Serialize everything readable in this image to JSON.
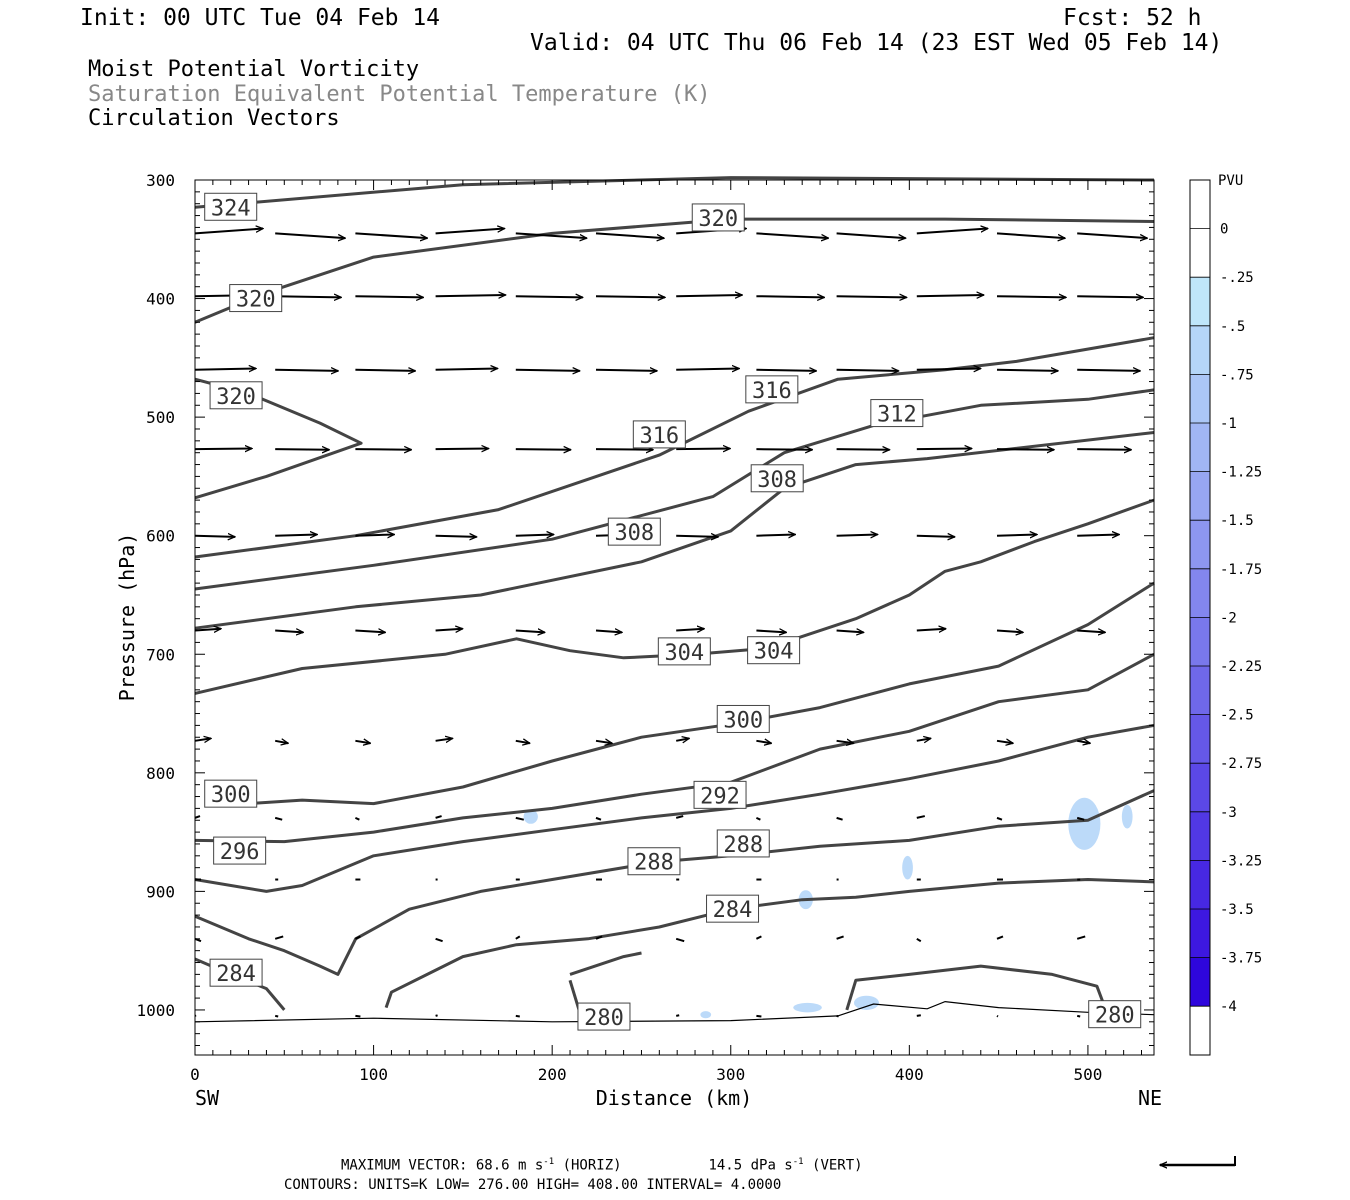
{
  "header": {
    "init": "Init: 00 UTC Tue 04 Feb 14",
    "fcst": "Fcst:   52 h",
    "valid": "Valid: 04 UTC Thu 06 Feb 14 (23 EST Wed 05 Feb 14)"
  },
  "layers": [
    {
      "label": "Moist Potential Vorticity",
      "color": "#000000"
    },
    {
      "label": "Saturation Equivalent Potential Temperature (K)",
      "color": "#888888"
    },
    {
      "label": "Circulation Vectors",
      "color": "#000000"
    }
  ],
  "footer": {
    "max_vector_prefix": "MAXIMUM VECTOR:  68.6 m s",
    "max_vector_sup": "-1",
    "max_vector_horiz": " (HORIZ)",
    "max_vector_vert_prefix": "14.5 dPa s",
    "max_vector_vert_sup": "-1",
    "max_vector_vert": " (VERT)",
    "contours": "CONTOURS:  UNITS=K  LOW=  276.00      HIGH=  408.00      INTERVAL=    4.0000"
  },
  "chart_data": {
    "type": "cross-section",
    "xlabel": "Distance (km)",
    "ylabel": "Pressure (hPa)",
    "xlim": [
      0,
      537
    ],
    "ylim": [
      1038,
      300
    ],
    "x_ticks": [
      "0",
      "100",
      "200",
      "300",
      "400",
      "500"
    ],
    "y_ticks": [
      "300",
      "400",
      "500",
      "600",
      "700",
      "800",
      "900",
      "1000"
    ],
    "endpoints": {
      "left": "SW",
      "right": "NE"
    },
    "colorbar": {
      "title": "PVU",
      "levels": [
        "0",
        "-.25",
        "-.5",
        "-.75",
        "-1",
        "-1.25",
        "-1.5",
        "-1.75",
        "-2",
        "-2.25",
        "-2.5",
        "-2.75",
        "-3",
        "-3.25",
        "-3.5",
        "-3.75",
        "-4"
      ],
      "colors": [
        "#ffffff",
        "#ffffff",
        "#bfe6fa",
        "#b5d6f8",
        "#abc6f6",
        "#a1b6f4",
        "#97a6f2",
        "#8d96f0",
        "#8386ee",
        "#7978ec",
        "#6f68ea",
        "#6558e8",
        "#5b48e6",
        "#5138e4",
        "#4728e2",
        "#3d18e0",
        "#2e06dc"
      ]
    },
    "contour_labels": [
      {
        "text": "324",
        "x": 20,
        "p": 323
      },
      {
        "text": "320",
        "x": 293,
        "p": 332
      },
      {
        "text": "320",
        "x": 34,
        "p": 400
      },
      {
        "text": "320",
        "x": 23,
        "p": 482
      },
      {
        "text": "316",
        "x": 323,
        "p": 477
      },
      {
        "text": "312",
        "x": 393,
        "p": 497
      },
      {
        "text": "316",
        "x": 260,
        "p": 515
      },
      {
        "text": "308",
        "x": 326,
        "p": 552
      },
      {
        "text": "308",
        "x": 246,
        "p": 597
      },
      {
        "text": "304",
        "x": 274,
        "p": 698
      },
      {
        "text": "304",
        "x": 324,
        "p": 697
      },
      {
        "text": "300",
        "x": 307,
        "p": 755
      },
      {
        "text": "300",
        "x": 20,
        "p": 818
      },
      {
        "text": "292",
        "x": 294,
        "p": 819
      },
      {
        "text": "296",
        "x": 25,
        "p": 866
      },
      {
        "text": "288",
        "x": 307,
        "p": 860
      },
      {
        "text": "288",
        "x": 257,
        "p": 875
      },
      {
        "text": "284",
        "x": 301,
        "p": 915
      },
      {
        "text": "284",
        "x": 23,
        "p": 969
      },
      {
        "text": "280",
        "x": 229,
        "p": 1006
      },
      {
        "text": "280",
        "x": 515,
        "p": 1004
      }
    ],
    "theta_e_contours": [
      {
        "level": 324,
        "points": [
          [
            0,
            323
          ],
          [
            150,
            304
          ],
          [
            300,
            298
          ],
          [
            537,
            300
          ]
        ]
      },
      {
        "level": 320,
        "points": [
          [
            0,
            420
          ],
          [
            40,
            395
          ],
          [
            100,
            365
          ],
          [
            200,
            345
          ],
          [
            300,
            333
          ],
          [
            420,
            333
          ],
          [
            537,
            335
          ]
        ]
      },
      {
        "level": 320,
        "points": [
          [
            0,
            468
          ],
          [
            30,
            480
          ],
          [
            70,
            505
          ],
          [
            93,
            522
          ],
          [
            40,
            550
          ],
          [
            0,
            568
          ]
        ]
      },
      {
        "level": 316,
        "points": [
          [
            0,
            618
          ],
          [
            90,
            600
          ],
          [
            170,
            578
          ],
          [
            260,
            532
          ],
          [
            310,
            495
          ],
          [
            360,
            468
          ],
          [
            420,
            460
          ],
          [
            460,
            453
          ],
          [
            537,
            433
          ]
        ]
      },
      {
        "level": 312,
        "points": [
          [
            0,
            645
          ],
          [
            100,
            625
          ],
          [
            200,
            603
          ],
          [
            290,
            567
          ],
          [
            330,
            530
          ],
          [
            380,
            507
          ],
          [
            440,
            490
          ],
          [
            500,
            485
          ],
          [
            537,
            477
          ]
        ]
      },
      {
        "level": 308,
        "points": [
          [
            0,
            678
          ],
          [
            90,
            660
          ],
          [
            160,
            650
          ],
          [
            250,
            622
          ],
          [
            300,
            596
          ],
          [
            330,
            560
          ],
          [
            370,
            540
          ],
          [
            410,
            535
          ],
          [
            537,
            513
          ]
        ]
      },
      {
        "level": 304,
        "points": [
          [
            0,
            733
          ],
          [
            60,
            712
          ],
          [
            140,
            700
          ],
          [
            180,
            687
          ],
          [
            210,
            697
          ],
          [
            240,
            703
          ],
          [
            280,
            700
          ],
          [
            320,
            695
          ],
          [
            370,
            670
          ],
          [
            400,
            650
          ],
          [
            420,
            630
          ],
          [
            440,
            622
          ],
          [
            470,
            605
          ],
          [
            500,
            590
          ],
          [
            537,
            570
          ]
        ]
      },
      {
        "level": 300,
        "points": [
          [
            0,
            728
          ],
          [
            0,
            728
          ]
        ]
      },
      {
        "level": 300,
        "points": [
          [
            30,
            826
          ],
          [
            60,
            823
          ],
          [
            100,
            826
          ],
          [
            150,
            812
          ],
          [
            200,
            790
          ],
          [
            250,
            770
          ],
          [
            300,
            759
          ],
          [
            350,
            745
          ],
          [
            400,
            725
          ],
          [
            450,
            710
          ],
          [
            500,
            675
          ],
          [
            537,
            640
          ]
        ]
      },
      {
        "level": 296,
        "points": [
          [
            0,
            857
          ],
          [
            50,
            858
          ],
          [
            100,
            850
          ],
          [
            150,
            838
          ],
          [
            200,
            830
          ],
          [
            250,
            818
          ],
          [
            300,
            808
          ],
          [
            350,
            780
          ],
          [
            400,
            765
          ],
          [
            450,
            740
          ],
          [
            500,
            730
          ],
          [
            537,
            700
          ]
        ]
      },
      {
        "level": 292,
        "points": [
          [
            0,
            890
          ],
          [
            40,
            900
          ],
          [
            60,
            895
          ],
          [
            100,
            870
          ],
          [
            150,
            858
          ],
          [
            200,
            848
          ],
          [
            250,
            838
          ],
          [
            300,
            830
          ],
          [
            350,
            818
          ],
          [
            400,
            805
          ],
          [
            450,
            790
          ],
          [
            500,
            770
          ],
          [
            537,
            760
          ]
        ]
      },
      {
        "level": 288,
        "points": [
          [
            0,
            921
          ],
          [
            30,
            940
          ],
          [
            50,
            950
          ],
          [
            70,
            963
          ],
          [
            80,
            970
          ],
          [
            90,
            940
          ],
          [
            120,
            915
          ],
          [
            160,
            900
          ],
          [
            200,
            890
          ],
          [
            260,
            875
          ],
          [
            300,
            870
          ],
          [
            350,
            862
          ],
          [
            400,
            857
          ],
          [
            450,
            845
          ],
          [
            500,
            840
          ],
          [
            537,
            815
          ]
        ]
      },
      {
        "level": 284,
        "points": [
          [
            0,
            957
          ],
          [
            20,
            970
          ],
          [
            40,
            982
          ],
          [
            50,
            1000
          ]
        ]
      },
      {
        "level": 284,
        "points": [
          [
            107,
            998
          ],
          [
            110,
            985
          ],
          [
            130,
            970
          ],
          [
            150,
            955
          ],
          [
            180,
            945
          ],
          [
            220,
            940
          ],
          [
            260,
            930
          ],
          [
            300,
            915
          ],
          [
            340,
            907
          ],
          [
            370,
            905
          ],
          [
            400,
            900
          ],
          [
            450,
            893
          ],
          [
            500,
            890
          ],
          [
            537,
            892
          ]
        ]
      },
      {
        "level": 280,
        "points": [
          [
            210,
            970
          ],
          [
            240,
            955
          ],
          [
            250,
            952
          ]
        ]
      },
      {
        "level": 280,
        "points": [
          [
            210,
            975
          ],
          [
            215,
            1000
          ]
        ]
      },
      {
        "level": 280,
        "points": [
          [
            365,
            1000
          ],
          [
            370,
            975
          ],
          [
            400,
            970
          ],
          [
            440,
            963
          ],
          [
            480,
            970
          ],
          [
            505,
            980
          ],
          [
            510,
            1000
          ]
        ]
      }
    ],
    "surface_line": [
      [
        0,
        1010
      ],
      [
        100,
        1007
      ],
      [
        200,
        1010
      ],
      [
        300,
        1009
      ],
      [
        360,
        1005
      ],
      [
        380,
        995
      ],
      [
        410,
        999
      ],
      [
        420,
        993
      ],
      [
        450,
        998
      ],
      [
        500,
        1002
      ],
      [
        537,
        1004
      ]
    ],
    "pv_patches": [
      {
        "x": 188,
        "p": 837,
        "rx": 4,
        "rp": 6
      },
      {
        "x": 498,
        "p": 843,
        "rx": 9,
        "rp": 22
      },
      {
        "x": 522,
        "p": 837,
        "rx": 3,
        "rp": 10
      },
      {
        "x": 399,
        "p": 880,
        "rx": 3,
        "rp": 10
      },
      {
        "x": 342,
        "p": 907,
        "rx": 4,
        "rp": 8
      },
      {
        "x": 343,
        "p": 998,
        "rx": 8,
        "rp": 4
      },
      {
        "x": 376,
        "p": 994,
        "rx": 7,
        "rp": 6
      },
      {
        "x": 286,
        "p": 1004,
        "rx": 3,
        "rp": 3
      }
    ],
    "vectors_note": "circulation vectors at rows 345,398,460,527,600,680,773,838,890,940,1005 hPa",
    "reference_vector": "68.6"
  }
}
